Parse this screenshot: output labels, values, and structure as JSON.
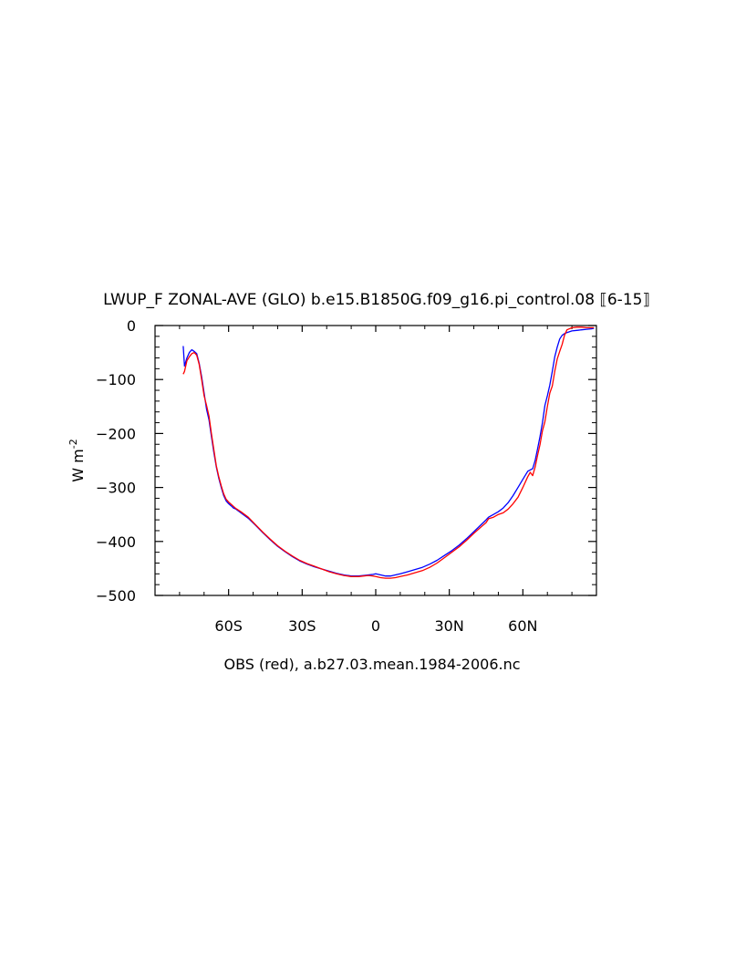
{
  "chart_data": {
    "type": "line",
    "title": "LWUP_F ZONAL-AVE (GLO) b.e15.B1850G.f09_g16.pi_control.08 ⟦6-15⟧",
    "ylabel": "W m",
    "ylabel_superscript": "-2",
    "xlabel": "OBS (red), a.b27.03.mean.1984-2006.nc",
    "xlim": [
      -90,
      90
    ],
    "ylim": [
      -500,
      0
    ],
    "grid": false,
    "x_ticks": [
      {
        "value": -60,
        "label": "60S"
      },
      {
        "value": -30,
        "label": "30S"
      },
      {
        "value": 0,
        "label": "0"
      },
      {
        "value": 30,
        "label": "30N"
      },
      {
        "value": 60,
        "label": "60N"
      }
    ],
    "y_ticks": [
      {
        "value": 0,
        "label": "0"
      },
      {
        "value": -100,
        "label": "−100"
      },
      {
        "value": -200,
        "label": "−200"
      },
      {
        "value": -300,
        "label": "−300"
      },
      {
        "value": -400,
        "label": "−400"
      },
      {
        "value": -500,
        "label": "−500"
      }
    ],
    "series": [
      {
        "color": "#0000ff",
        "x": [
          -78.5,
          -78,
          -77,
          -76,
          -75,
          -74,
          -73,
          -72,
          -71,
          -70,
          -69,
          -68,
          -67,
          -66,
          -65,
          -64,
          -63,
          -62,
          -61,
          -60,
          -59,
          -58,
          -57,
          -55,
          -52,
          -49,
          -46,
          -43,
          -40,
          -37,
          -34,
          -31,
          -28,
          -25,
          -22,
          -19,
          -16,
          -13,
          -10,
          -7,
          -5,
          -3,
          -1,
          0,
          2,
          4,
          6,
          8,
          10,
          13,
          16,
          19,
          22,
          25,
          28,
          31,
          34,
          37,
          40,
          43,
          45,
          46,
          48,
          50,
          52,
          54,
          56,
          58,
          60,
          62,
          64,
          65,
          66,
          67,
          68,
          69,
          70,
          71,
          72,
          73,
          74,
          75,
          76,
          77,
          78,
          80,
          82,
          84,
          86,
          88,
          89
        ],
        "y": [
          -38,
          -75,
          -60,
          -50,
          -45,
          -48,
          -52,
          -70,
          -95,
          -125,
          -155,
          -175,
          -205,
          -235,
          -262,
          -283,
          -300,
          -315,
          -325,
          -330,
          -334,
          -338,
          -340,
          -347,
          -357,
          -370,
          -384,
          -397,
          -409,
          -419,
          -428,
          -436,
          -442,
          -447,
          -451,
          -455,
          -459,
          -462,
          -464,
          -464,
          -463,
          -462,
          -461,
          -460,
          -462,
          -464,
          -464,
          -462,
          -460,
          -456,
          -452,
          -448,
          -442,
          -435,
          -426,
          -417,
          -407,
          -395,
          -382,
          -369,
          -360,
          -355,
          -350,
          -345,
          -338,
          -328,
          -315,
          -300,
          -285,
          -270,
          -265,
          -250,
          -228,
          -205,
          -180,
          -148,
          -130,
          -110,
          -85,
          -58,
          -40,
          -25,
          -18,
          -15,
          -13,
          -10,
          -9,
          -8,
          -7,
          -6,
          -5
        ]
      },
      {
        "color": "#ff0000",
        "x": [
          -78.5,
          -78,
          -77,
          -76,
          -75,
          -74,
          -73,
          -72,
          -71,
          -70,
          -69,
          -68,
          -67,
          -66,
          -65,
          -64,
          -63,
          -62,
          -61,
          -60,
          -59,
          -58,
          -57,
          -55,
          -52,
          -49,
          -46,
          -43,
          -40,
          -37,
          -34,
          -31,
          -28,
          -25,
          -22,
          -19,
          -16,
          -13,
          -10,
          -7,
          -5,
          -3,
          -1,
          0,
          2,
          4,
          6,
          8,
          10,
          13,
          16,
          19,
          22,
          25,
          28,
          31,
          34,
          37,
          40,
          43,
          45,
          46,
          48,
          50,
          52,
          54,
          56,
          58,
          60,
          62,
          63,
          64,
          65,
          66,
          67,
          68,
          69,
          70,
          71,
          72,
          73,
          74,
          75,
          76,
          77,
          78,
          80,
          82,
          84,
          86,
          88,
          89
        ],
        "y": [
          -90,
          -85,
          -65,
          -58,
          -52,
          -50,
          -55,
          -72,
          -100,
          -130,
          -148,
          -168,
          -200,
          -230,
          -260,
          -280,
          -297,
          -312,
          -322,
          -327,
          -331,
          -335,
          -339,
          -345,
          -355,
          -369,
          -383,
          -396,
          -408,
          -418,
          -427,
          -435,
          -441,
          -446,
          -451,
          -456,
          -460,
          -463,
          -465,
          -465,
          -464,
          -463,
          -464,
          -465,
          -467,
          -468,
          -468,
          -467,
          -465,
          -462,
          -458,
          -454,
          -448,
          -440,
          -430,
          -420,
          -410,
          -398,
          -385,
          -373,
          -365,
          -358,
          -355,
          -350,
          -347,
          -340,
          -330,
          -318,
          -300,
          -280,
          -272,
          -278,
          -262,
          -240,
          -220,
          -195,
          -178,
          -150,
          -125,
          -112,
          -85,
          -62,
          -48,
          -35,
          -18,
          -8,
          -4,
          -3,
          -3,
          -4,
          -4,
          -4
        ]
      }
    ]
  }
}
